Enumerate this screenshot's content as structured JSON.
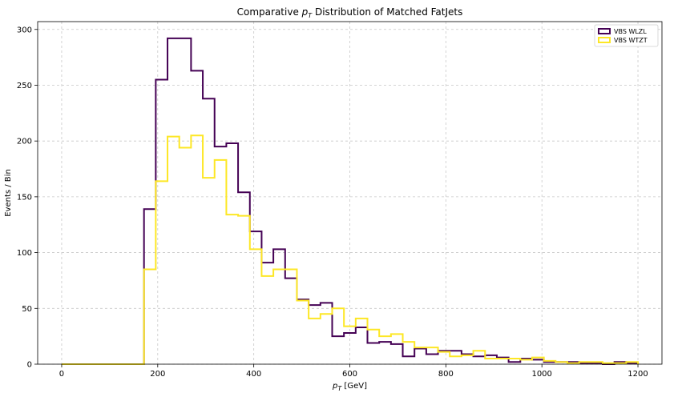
{
  "chart_data": {
    "type": "histogram-step",
    "title": "Comparative p_T Distribution of Matched FatJets",
    "title_prefix": "Comparative ",
    "title_symbol": "p",
    "title_sub": "T",
    "title_suffix": " Distribution of Matched FatJets",
    "xlabel_symbol": "p",
    "xlabel_sub": "T",
    "xlabel_unit": " [GeV]",
    "ylabel": "Events / Bin",
    "xlim": [
      -50,
      1250
    ],
    "ylim": [
      0,
      307
    ],
    "xticks": [
      0,
      200,
      400,
      600,
      800,
      1000,
      1200
    ],
    "yticks": [
      0,
      50,
      100,
      150,
      200,
      250,
      300
    ],
    "grid": true,
    "legend_position": "top-right",
    "bin_edges": [
      0,
      24.49,
      48.98,
      73.47,
      97.96,
      122.45,
      146.94,
      171.43,
      195.92,
      220.41,
      244.9,
      269.39,
      293.88,
      318.37,
      342.86,
      367.35,
      391.84,
      416.33,
      440.82,
      465.31,
      489.8,
      514.29,
      538.78,
      563.27,
      587.76,
      612.24,
      636.73,
      661.22,
      685.71,
      710.2,
      734.69,
      759.18,
      783.67,
      808.16,
      832.65,
      857.14,
      881.63,
      906.12,
      930.61,
      955.1,
      979.59,
      1004.08,
      1028.57,
      1053.06,
      1077.55,
      1102.04,
      1126.53,
      1151.02,
      1175.51,
      1200
    ],
    "series": [
      {
        "name": "VBS WLZL",
        "color": "#440154",
        "values": [
          0,
          0,
          0,
          0,
          0,
          0,
          0,
          139,
          255,
          292,
          292,
          263,
          238,
          195,
          198,
          154,
          119,
          91,
          103,
          77,
          58,
          53,
          55,
          25,
          28,
          33,
          19,
          20,
          18,
          7,
          14,
          9,
          12,
          12,
          9,
          7,
          8,
          6,
          2,
          5,
          4,
          2,
          2,
          2,
          1,
          1,
          0,
          2,
          1
        ]
      },
      {
        "name": "VBS WTZT",
        "color": "#fde725",
        "values": [
          0,
          0,
          0,
          0,
          0,
          0,
          0,
          85,
          164,
          204,
          194,
          205,
          167,
          183,
          134,
          133,
          103,
          79,
          85,
          85,
          57,
          41,
          45,
          50,
          34,
          41,
          31,
          25,
          27,
          20,
          15,
          15,
          11,
          7,
          8,
          12,
          5,
          5,
          5,
          4,
          6,
          3,
          2,
          1,
          2,
          2,
          1,
          1,
          2
        ]
      }
    ]
  }
}
